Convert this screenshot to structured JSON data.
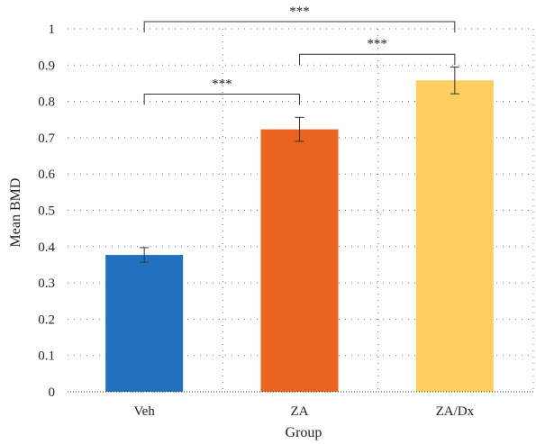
{
  "chart_data": {
    "type": "bar",
    "title": "",
    "xlabel": "Group",
    "ylabel": "Mean BMD",
    "ylim": [
      0,
      1
    ],
    "yticks": [
      "0",
      "0.1",
      "0.2",
      "0.3",
      "0.4",
      "0.5",
      "0.6",
      "0.7",
      "0.8",
      "0.9",
      "1"
    ],
    "grid": true,
    "categories": [
      "Veh",
      "ZA",
      "ZA/Dx"
    ],
    "values": [
      0.377,
      0.723,
      0.858
    ],
    "errors": [
      0.02,
      0.033,
      0.037
    ],
    "colors": [
      "#2271be",
      "#e8641f",
      "#fccf5f"
    ],
    "significance": [
      {
        "from": 0,
        "to": 1,
        "label": "***",
        "level": 0.82
      },
      {
        "from": 1,
        "to": 2,
        "label": "***",
        "level": 0.93
      },
      {
        "from": 0,
        "to": 2,
        "label": "***",
        "level": 1.02
      }
    ]
  }
}
